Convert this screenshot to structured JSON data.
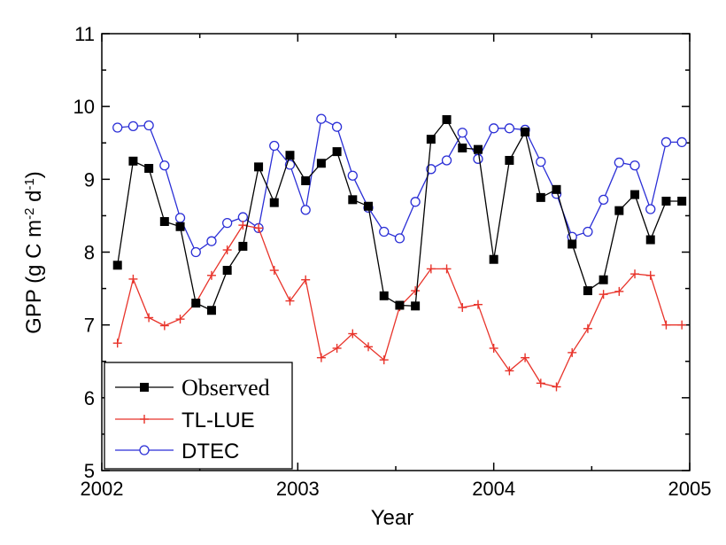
{
  "chart_data": {
    "type": "line",
    "xlabel": "Year",
    "ylabel_main": "GPP (g C m",
    "ylabel_sup1": "-2",
    "ylabel_mid": " d",
    "ylabel_sup2": "-1",
    "ylabel_end": ")",
    "xlim": [
      2002.0,
      2005.0
    ],
    "ylim": [
      5,
      11
    ],
    "xticks": [
      {
        "value": 2002,
        "label": "2002"
      },
      {
        "value": 2003,
        "label": "2003"
      },
      {
        "value": 2004,
        "label": "2004"
      },
      {
        "value": 2005,
        "label": "2005"
      }
    ],
    "yticks": [
      {
        "value": 5,
        "label": "5"
      },
      {
        "value": 6,
        "label": "6"
      },
      {
        "value": 7,
        "label": "7"
      },
      {
        "value": 8,
        "label": "8"
      },
      {
        "value": 9,
        "label": "9"
      },
      {
        "value": 10,
        "label": "10"
      },
      {
        "value": 11,
        "label": "11"
      }
    ],
    "legend_position": "bottom-left",
    "grid": false,
    "series": [
      {
        "name": "Observed",
        "color": "#000000",
        "marker": "filled-square",
        "x": [
          2002.08,
          2002.16,
          2002.24,
          2002.32,
          2002.4,
          2002.48,
          2002.56,
          2002.64,
          2002.72,
          2002.8,
          2002.88,
          2002.96,
          2003.04,
          2003.12,
          2003.2,
          2003.28,
          2003.36,
          2003.44,
          2003.52,
          2003.6,
          2003.68,
          2003.76,
          2003.84,
          2003.92,
          2004.0,
          2004.08,
          2004.16,
          2004.24,
          2004.32,
          2004.4,
          2004.48,
          2004.56,
          2004.64,
          2004.72,
          2004.8,
          2004.88,
          2004.96
        ],
        "y": [
          7.82,
          9.25,
          9.15,
          8.42,
          8.35,
          7.3,
          7.2,
          7.75,
          8.08,
          9.17,
          8.68,
          9.33,
          8.98,
          9.22,
          9.38,
          8.72,
          8.63,
          7.4,
          7.27,
          7.26,
          9.55,
          9.82,
          9.43,
          9.41,
          7.9,
          9.26,
          9.65,
          8.75,
          8.86,
          8.11,
          7.47,
          7.62,
          8.57,
          8.79,
          8.17,
          8.7,
          8.7
        ]
      },
      {
        "name": "TL-LUE",
        "color": "#e8332a",
        "marker": "plus",
        "x": [
          2002.08,
          2002.16,
          2002.24,
          2002.32,
          2002.4,
          2002.48,
          2002.56,
          2002.64,
          2002.72,
          2002.8,
          2002.88,
          2002.96,
          2003.04,
          2003.12,
          2003.2,
          2003.28,
          2003.36,
          2003.44,
          2003.52,
          2003.6,
          2003.68,
          2003.76,
          2003.84,
          2003.92,
          2004.0,
          2004.08,
          2004.16,
          2004.24,
          2004.32,
          2004.4,
          2004.48,
          2004.56,
          2004.64,
          2004.72,
          2004.8,
          2004.88,
          2004.96
        ],
        "y": [
          6.75,
          7.63,
          7.1,
          6.99,
          7.08,
          7.3,
          7.68,
          8.03,
          8.37,
          8.33,
          7.75,
          7.33,
          7.62,
          6.55,
          6.68,
          6.88,
          6.7,
          6.52,
          7.25,
          7.47,
          7.77,
          7.77,
          7.24,
          7.28,
          6.68,
          6.37,
          6.55,
          6.2,
          6.15,
          6.62,
          6.95,
          7.42,
          7.46,
          7.7,
          7.68,
          7.0,
          7.0
        ]
      },
      {
        "name": "DTEC",
        "color": "#2b2fd6",
        "marker": "open-circle",
        "x": [
          2002.08,
          2002.16,
          2002.24,
          2002.32,
          2002.4,
          2002.48,
          2002.56,
          2002.64,
          2002.72,
          2002.8,
          2002.88,
          2002.96,
          2003.04,
          2003.12,
          2003.2,
          2003.28,
          2003.36,
          2003.44,
          2003.52,
          2003.6,
          2003.68,
          2003.76,
          2003.84,
          2003.92,
          2004.0,
          2004.08,
          2004.16,
          2004.24,
          2004.32,
          2004.4,
          2004.48,
          2004.56,
          2004.64,
          2004.72,
          2004.8,
          2004.88,
          2004.96
        ],
        "y": [
          9.71,
          9.73,
          9.74,
          9.19,
          8.47,
          8.0,
          8.15,
          8.4,
          8.48,
          8.33,
          9.46,
          9.2,
          8.58,
          9.83,
          9.72,
          9.05,
          8.61,
          8.28,
          8.19,
          8.69,
          9.14,
          9.26,
          9.64,
          9.28,
          9.7,
          9.7,
          9.68,
          9.24,
          8.8,
          8.21,
          8.28,
          8.72,
          9.23,
          9.19,
          8.59,
          9.51,
          9.51
        ]
      }
    ]
  }
}
